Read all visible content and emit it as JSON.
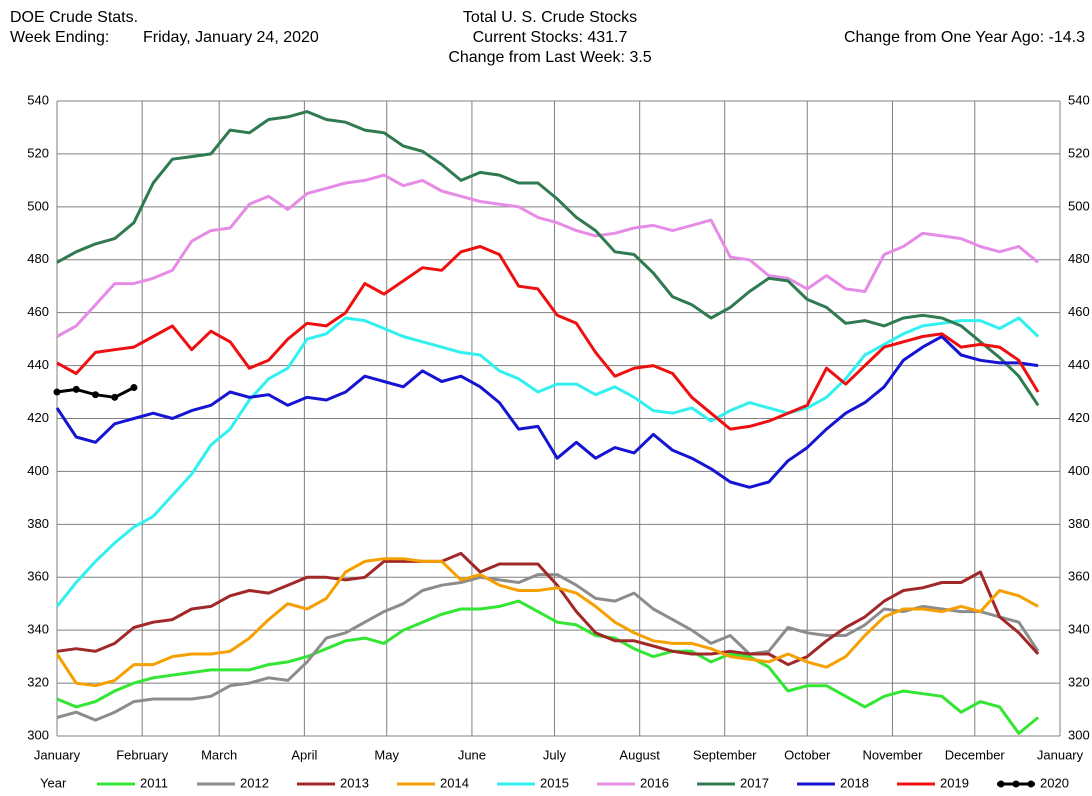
{
  "chart_data": {
    "type": "line",
    "header_left": [
      "DOE Crude Stats.",
      "Week Ending:"
    ],
    "week_ending": "Friday, January 24, 2020",
    "title": "Total U. S. Crude Stocks",
    "subtitle": [
      "Current Stocks: 431.7",
      "Change from Last Week:  3.5"
    ],
    "header_right": "Change from One Year Ago: -14.3",
    "legend_title": "Year",
    "xlim": [
      0,
      52.14
    ],
    "xticks": [
      {
        "value": 0,
        "label": "January"
      },
      {
        "value": 4.43,
        "label": "February"
      },
      {
        "value": 8.43,
        "label": "March"
      },
      {
        "value": 12.86,
        "label": "April"
      },
      {
        "value": 17.14,
        "label": "May"
      },
      {
        "value": 21.57,
        "label": "June"
      },
      {
        "value": 25.86,
        "label": "July"
      },
      {
        "value": 30.29,
        "label": "August"
      },
      {
        "value": 34.71,
        "label": "September"
      },
      {
        "value": 39,
        "label": "October"
      },
      {
        "value": 43.43,
        "label": "November"
      },
      {
        "value": 47.71,
        "label": "December"
      },
      {
        "value": 52.14,
        "label": "January"
      }
    ],
    "ylim": [
      300,
      540
    ],
    "yticks": [
      300,
      320,
      340,
      360,
      380,
      400,
      420,
      440,
      460,
      480,
      500,
      520,
      540
    ],
    "grid": true,
    "series": [
      {
        "name": "2011",
        "color": "#33e633",
        "values": [
          314,
          311,
          313,
          317,
          320,
          322,
          323,
          324,
          325,
          325,
          325,
          327,
          328,
          330,
          333,
          336,
          337,
          335,
          340,
          343,
          346,
          348,
          348,
          349,
          351,
          347,
          343,
          342,
          338,
          337,
          333,
          330,
          332,
          332,
          328,
          331,
          330,
          326,
          317,
          319,
          319,
          315,
          311,
          315,
          317,
          316,
          315,
          309,
          313,
          311,
          301,
          307
        ]
      },
      {
        "name": "2012",
        "color": "#8c8c8c",
        "values": [
          307,
          309,
          306,
          309,
          313,
          314,
          314,
          314,
          315,
          319,
          320,
          322,
          321,
          328,
          337,
          339,
          343,
          347,
          350,
          355,
          357,
          358,
          360,
          359,
          358,
          361,
          361,
          357,
          352,
          351,
          354,
          348,
          344,
          340,
          335,
          338,
          331,
          332,
          341,
          339,
          338,
          338,
          342,
          348,
          347,
          349,
          348,
          347,
          347,
          345,
          343,
          332
        ]
      },
      {
        "name": "2013",
        "color": "#a02828",
        "values": [
          332,
          333,
          332,
          335,
          341,
          343,
          344,
          348,
          349,
          353,
          355,
          354,
          357,
          360,
          360,
          359,
          360,
          366,
          366,
          366,
          366,
          369,
          362,
          365,
          365,
          365,
          357,
          347,
          339,
          336,
          336,
          334,
          332,
          331,
          331,
          332,
          331,
          331,
          327,
          330,
          336,
          341,
          345,
          351,
          355,
          356,
          358,
          358,
          362,
          345,
          339,
          331
        ]
      },
      {
        "name": "2014",
        "color": "#f5a000",
        "values": [
          331,
          320,
          319,
          321,
          327,
          327,
          330,
          331,
          331,
          332,
          337,
          344,
          350,
          348,
          352,
          362,
          366,
          367,
          367,
          366,
          366,
          359,
          361,
          357,
          355,
          355,
          356,
          354,
          349,
          343,
          339,
          336,
          335,
          335,
          333,
          330,
          329,
          328,
          331,
          328,
          326,
          330,
          338,
          345,
          348,
          348,
          347,
          349,
          347,
          355,
          353,
          349
        ]
      },
      {
        "name": "2015",
        "color": "#33f0f0",
        "values": [
          349,
          358,
          366,
          373,
          379,
          383,
          391,
          399,
          410,
          416,
          427,
          435,
          439,
          450,
          452,
          458,
          457,
          454,
          451,
          449,
          447,
          445,
          444,
          438,
          435,
          430,
          433,
          433,
          429,
          432,
          428,
          423,
          422,
          424,
          419,
          423,
          426,
          424,
          422,
          424,
          428,
          435,
          444,
          448,
          452,
          455,
          456,
          457,
          457,
          454,
          458,
          451
        ]
      },
      {
        "name": "2016",
        "color": "#e68ce6",
        "values": [
          451,
          455,
          463,
          471,
          471,
          473,
          476,
          487,
          491,
          492,
          501,
          504,
          499,
          505,
          507,
          509,
          510,
          512,
          508,
          510,
          506,
          504,
          502,
          501,
          500,
          496,
          494,
          491,
          489,
          490,
          492,
          493,
          491,
          493,
          495,
          481,
          480,
          474,
          473,
          469,
          474,
          469,
          468,
          482,
          485,
          490,
          489,
          488,
          485,
          483,
          485,
          479
        ]
      },
      {
        "name": "2017",
        "color": "#2f7a50",
        "values": [
          479,
          483,
          486,
          488,
          494,
          509,
          518,
          519,
          520,
          529,
          528,
          533,
          534,
          536,
          533,
          532,
          529,
          528,
          523,
          521,
          516,
          510,
          513,
          512,
          509,
          509,
          503,
          496,
          491,
          483,
          482,
          475,
          466,
          463,
          458,
          462,
          468,
          473,
          472,
          465,
          462,
          456,
          457,
          455,
          458,
          459,
          458,
          455,
          449,
          443,
          436,
          425
        ]
      },
      {
        "name": "2018",
        "color": "#1414d2",
        "values": [
          424,
          413,
          411,
          418,
          420,
          422,
          420,
          423,
          425,
          430,
          428,
          429,
          425,
          428,
          427,
          430,
          436,
          434,
          432,
          438,
          434,
          436,
          432,
          426,
          416,
          417,
          405,
          411,
          405,
          409,
          407,
          414,
          408,
          405,
          401,
          396,
          394,
          396,
          404,
          409,
          416,
          422,
          426,
          432,
          442,
          447,
          451,
          444,
          442,
          441,
          441,
          440
        ]
      },
      {
        "name": "2019",
        "color": "#ee1010",
        "values": [
          441,
          437,
          445,
          446,
          447,
          451,
          455,
          446,
          453,
          449,
          439,
          442,
          450,
          456,
          455,
          460,
          471,
          467,
          472,
          477,
          476,
          483,
          485,
          482,
          470,
          469,
          459,
          456,
          445,
          436,
          439,
          440,
          437,
          428,
          422,
          416,
          417,
          419,
          422,
          425,
          439,
          433,
          440,
          447,
          449,
          451,
          452,
          447,
          448,
          447,
          442,
          430
        ]
      },
      {
        "name": "2020",
        "color": "#000000",
        "values": [
          430,
          431,
          429,
          428,
          431.7,
          null,
          null,
          null,
          null,
          null,
          null,
          null,
          null,
          null,
          null,
          null,
          null,
          null,
          null,
          null,
          null,
          null,
          null,
          null,
          null,
          null,
          null,
          null,
          null,
          null,
          null,
          null,
          null,
          null,
          null,
          null,
          null,
          null,
          null,
          null,
          null,
          null,
          null,
          null,
          null,
          null,
          null,
          null,
          null,
          null,
          null,
          null
        ]
      }
    ]
  }
}
